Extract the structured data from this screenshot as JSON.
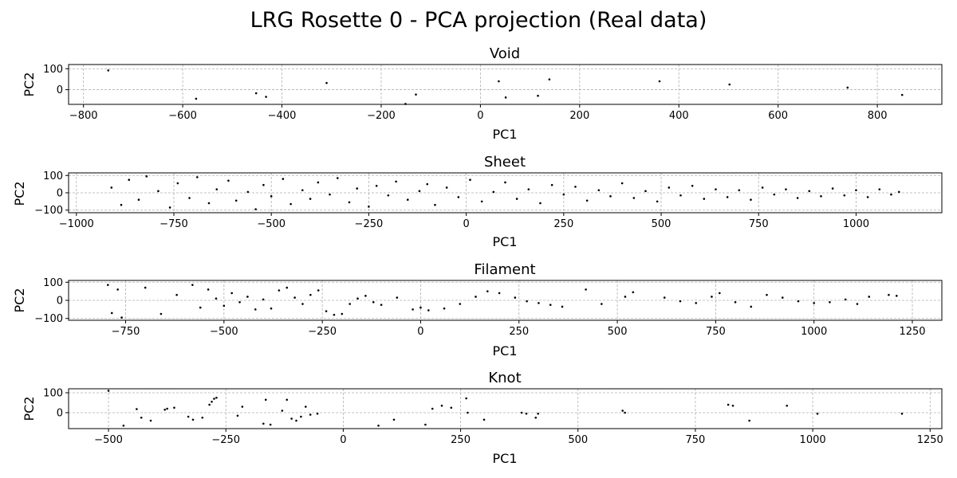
{
  "figure": {
    "title": "LRG Rosette 0 - PCA projection (Real data)"
  },
  "chart_data": [
    {
      "type": "scatter",
      "title": "Void",
      "xlabel": "PC1",
      "ylabel": "PC2",
      "xlim": [
        -830,
        930
      ],
      "ylim": [
        -70,
        120
      ],
      "xticks": [
        -800,
        -600,
        -400,
        -200,
        0,
        200,
        400,
        600,
        800
      ],
      "yticks": [
        0,
        100
      ],
      "grid": true,
      "points": [
        [
          -750,
          92
        ],
        [
          -573,
          -43
        ],
        [
          -452,
          -17
        ],
        [
          -432,
          -34
        ],
        [
          -310,
          32
        ],
        [
          -151,
          -68
        ],
        [
          -130,
          -23
        ],
        [
          37,
          40
        ],
        [
          51,
          -37
        ],
        [
          116,
          -29
        ],
        [
          139,
          49
        ],
        [
          361,
          40
        ],
        [
          502,
          25
        ],
        [
          740,
          10
        ],
        [
          850,
          -25
        ]
      ]
    },
    {
      "type": "scatter",
      "title": "Sheet",
      "xlabel": "PC1",
      "ylabel": "PC2",
      "xlim": [
        -1020,
        1220
      ],
      "ylim": [
        -115,
        115
      ],
      "xticks": [
        -1000,
        -750,
        -500,
        -250,
        0,
        250,
        500,
        750,
        1000
      ],
      "yticks": [
        -100,
        0,
        100
      ],
      "grid": true,
      "points": [
        [
          -910,
          30
        ],
        [
          -885,
          -70
        ],
        [
          -865,
          75
        ],
        [
          -840,
          -40
        ],
        [
          -820,
          95
        ],
        [
          -790,
          10
        ],
        [
          -760,
          -85
        ],
        [
          -740,
          55
        ],
        [
          -710,
          -30
        ],
        [
          -690,
          90
        ],
        [
          -660,
          -60
        ],
        [
          -640,
          20
        ],
        [
          -610,
          70
        ],
        [
          -590,
          -45
        ],
        [
          -560,
          5
        ],
        [
          -540,
          -95
        ],
        [
          -520,
          45
        ],
        [
          -500,
          -20
        ],
        [
          -470,
          80
        ],
        [
          -450,
          -65
        ],
        [
          -420,
          15
        ],
        [
          -400,
          -35
        ],
        [
          -380,
          60
        ],
        [
          -350,
          -10
        ],
        [
          -330,
          85
        ],
        [
          -300,
          -55
        ],
        [
          -280,
          25
        ],
        [
          -250,
          -80
        ],
        [
          -230,
          40
        ],
        [
          -200,
          -15
        ],
        [
          -180,
          65
        ],
        [
          -150,
          -40
        ],
        [
          -120,
          10
        ],
        [
          -100,
          50
        ],
        [
          -80,
          -70
        ],
        [
          -50,
          30
        ],
        [
          -20,
          -25
        ],
        [
          10,
          75
        ],
        [
          40,
          -50
        ],
        [
          70,
          5
        ],
        [
          100,
          60
        ],
        [
          130,
          -35
        ],
        [
          160,
          20
        ],
        [
          190,
          -60
        ],
        [
          220,
          45
        ],
        [
          250,
          -10
        ],
        [
          280,
          35
        ],
        [
          310,
          -45
        ],
        [
          340,
          15
        ],
        [
          370,
          -20
        ],
        [
          400,
          55
        ],
        [
          430,
          -30
        ],
        [
          460,
          10
        ],
        [
          490,
          -50
        ],
        [
          520,
          30
        ],
        [
          550,
          -15
        ],
        [
          580,
          40
        ],
        [
          610,
          -35
        ],
        [
          640,
          20
        ],
        [
          670,
          -25
        ],
        [
          700,
          15
        ],
        [
          730,
          -40
        ],
        [
          760,
          30
        ],
        [
          790,
          -10
        ],
        [
          820,
          20
        ],
        [
          850,
          -30
        ],
        [
          880,
          10
        ],
        [
          910,
          -20
        ],
        [
          940,
          25
        ],
        [
          970,
          -15
        ],
        [
          1000,
          15
        ],
        [
          1030,
          -25
        ],
        [
          1060,
          20
        ],
        [
          1090,
          -10
        ],
        [
          1110,
          5
        ]
      ]
    },
    {
      "type": "scatter",
      "title": "Filament",
      "xlabel": "PC1",
      "ylabel": "PC2",
      "xlim": [
        -895,
        1325
      ],
      "ylim": [
        -110,
        110
      ],
      "xticks": [
        -750,
        -500,
        -250,
        0,
        250,
        500,
        750,
        1000,
        1250
      ],
      "yticks": [
        -100,
        0,
        100
      ],
      "grid": true,
      "points": [
        [
          -795,
          85
        ],
        [
          -785,
          -70
        ],
        [
          -770,
          60
        ],
        [
          -760,
          -95
        ],
        [
          -700,
          70
        ],
        [
          -660,
          -75
        ],
        [
          -620,
          30
        ],
        [
          -580,
          85
        ],
        [
          -560,
          -40
        ],
        [
          -540,
          60
        ],
        [
          -520,
          10
        ],
        [
          -500,
          -30
        ],
        [
          -480,
          40
        ],
        [
          -460,
          -10
        ],
        [
          -440,
          20
        ],
        [
          -420,
          -50
        ],
        [
          -400,
          5
        ],
        [
          -380,
          -45
        ],
        [
          -360,
          55
        ],
        [
          -340,
          70
        ],
        [
          -320,
          15
        ],
        [
          -300,
          -20
        ],
        [
          -280,
          30
        ],
        [
          -260,
          55
        ],
        [
          -240,
          -60
        ],
        [
          -220,
          -80
        ],
        [
          -200,
          -75
        ],
        [
          -180,
          -20
        ],
        [
          -160,
          10
        ],
        [
          -140,
          25
        ],
        [
          -120,
          -10
        ],
        [
          -100,
          -25
        ],
        [
          -60,
          15
        ],
        [
          -20,
          -50
        ],
        [
          0,
          -40
        ],
        [
          20,
          -55
        ],
        [
          60,
          -45
        ],
        [
          100,
          -20
        ],
        [
          140,
          20
        ],
        [
          170,
          50
        ],
        [
          200,
          40
        ],
        [
          240,
          15
        ],
        [
          270,
          -5
        ],
        [
          300,
          -15
        ],
        [
          330,
          -25
        ],
        [
          360,
          -35
        ],
        [
          420,
          60
        ],
        [
          460,
          -20
        ],
        [
          520,
          20
        ],
        [
          540,
          45
        ],
        [
          620,
          15
        ],
        [
          660,
          -5
        ],
        [
          700,
          -15
        ],
        [
          740,
          20
        ],
        [
          760,
          40
        ],
        [
          800,
          -10
        ],
        [
          840,
          -35
        ],
        [
          880,
          30
        ],
        [
          920,
          15
        ],
        [
          960,
          -5
        ],
        [
          1000,
          -15
        ],
        [
          1040,
          -10
        ],
        [
          1080,
          5
        ],
        [
          1110,
          -20
        ],
        [
          1140,
          20
        ],
        [
          1190,
          30
        ],
        [
          1210,
          25
        ]
      ]
    },
    {
      "type": "scatter",
      "title": "Knot",
      "xlabel": "PC1",
      "ylabel": "PC2",
      "xlim": [
        -585,
        1275
      ],
      "ylim": [
        -80,
        120
      ],
      "xticks": [
        -500,
        -250,
        0,
        250,
        500,
        750,
        1000,
        1250
      ],
      "yticks": [
        0,
        100
      ],
      "grid": true,
      "points": [
        [
          -500,
          110
        ],
        [
          -468,
          -65
        ],
        [
          -440,
          18
        ],
        [
          -430,
          -25
        ],
        [
          -410,
          -40
        ],
        [
          -380,
          15
        ],
        [
          -375,
          20
        ],
        [
          -360,
          25
        ],
        [
          -330,
          -20
        ],
        [
          -320,
          -35
        ],
        [
          -300,
          -25
        ],
        [
          -285,
          40
        ],
        [
          -280,
          55
        ],
        [
          -275,
          70
        ],
        [
          -270,
          75
        ],
        [
          -225,
          -15
        ],
        [
          -215,
          30
        ],
        [
          -170,
          -55
        ],
        [
          -165,
          65
        ],
        [
          -155,
          -60
        ],
        [
          -130,
          10
        ],
        [
          -120,
          65
        ],
        [
          -110,
          -30
        ],
        [
          -100,
          -40
        ],
        [
          -90,
          -20
        ],
        [
          -80,
          30
        ],
        [
          -70,
          -10
        ],
        [
          -55,
          -5
        ],
        [
          75,
          -65
        ],
        [
          108,
          -35
        ],
        [
          175,
          -60
        ],
        [
          190,
          20
        ],
        [
          210,
          35
        ],
        [
          230,
          25
        ],
        [
          262,
          72
        ],
        [
          265,
          0
        ],
        [
          300,
          -35
        ],
        [
          380,
          0
        ],
        [
          390,
          -5
        ],
        [
          410,
          -25
        ],
        [
          415,
          -5
        ],
        [
          595,
          10
        ],
        [
          600,
          0
        ],
        [
          820,
          40
        ],
        [
          830,
          35
        ],
        [
          865,
          -40
        ],
        [
          945,
          35
        ],
        [
          1010,
          -5
        ],
        [
          1190,
          -5
        ]
      ]
    }
  ]
}
